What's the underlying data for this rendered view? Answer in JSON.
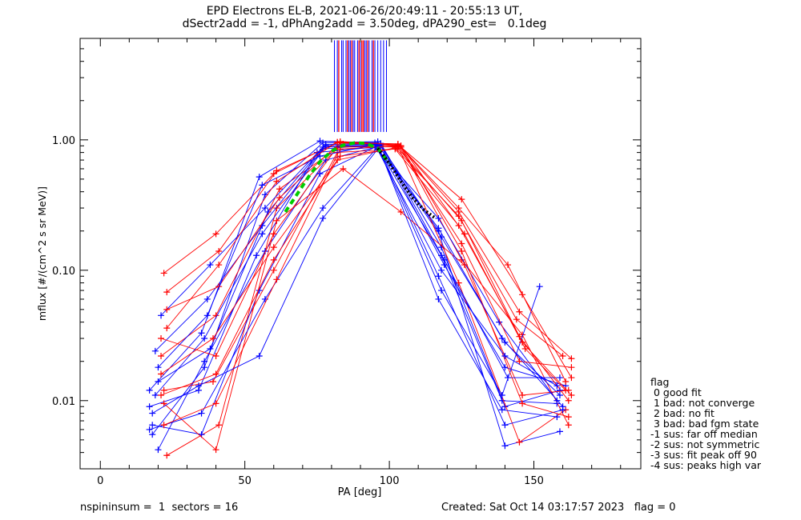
{
  "chart_data": {
    "type": "scatter",
    "title": "EPD Electrons EL-B, 2021-06-26/20:49:11 - 20:55:13 UT,",
    "subtitle": "dSectr2add = -1, dPhAng2add = 3.50deg, dPA290_est=   0.1deg",
    "xlabel": "PA [deg]",
    "ylabel": "mflux [#/(cm^2 s sr MeV)]",
    "xlim": [
      -7,
      187
    ],
    "ylim": [
      0.003,
      6.0
    ],
    "yscale": "log",
    "xticks": [
      0,
      50,
      100,
      150
    ],
    "xtick_labels": [
      "0",
      "50",
      "100",
      "150"
    ],
    "yticks": [
      0.01,
      0.1,
      1.0
    ],
    "ytick_labels": [
      "0.01",
      "0.10",
      "1.00"
    ],
    "grid": false,
    "series": [
      {
        "color": "#0000ff",
        "sweeps": [
          {
            "x": [
              18,
              36,
              57,
              77,
              96,
              117,
              140,
              159
            ],
            "y": [
              0.0055,
              0.018,
              0.38,
              0.95,
              0.97,
              0.2,
              0.0045,
              0.0058
            ]
          },
          {
            "x": [
              17,
              35,
              55,
              76,
              95,
              118,
              139,
              158
            ],
            "y": [
              0.012,
              0.033,
              0.52,
              0.98,
              0.95,
              0.13,
              0.01,
              0.0095
            ]
          },
          {
            "x": [
              20,
              36,
              57,
              78,
              97,
              119,
              140,
              161
            ],
            "y": [
              0.0042,
              0.02,
              0.14,
              0.7,
              0.9,
              0.11,
              0.018,
              0.013
            ]
          },
          {
            "x": [
              19,
              37,
              56,
              77,
              96,
              118,
              140,
              159
            ],
            "y": [
              0.024,
              0.06,
              0.22,
              0.85,
              0.92,
              0.18,
              0.028,
              0.011
            ]
          },
          {
            "x": [
              17,
              34,
              54,
              75,
              95,
              117,
              138,
              158
            ],
            "y": [
              0.009,
              0.012,
              0.13,
              0.8,
              0.88,
              0.25,
              0.04,
              0.01
            ]
          },
          {
            "x": [
              20,
              38,
              58,
              78,
              97,
              118,
              140,
              159
            ],
            "y": [
              0.014,
              0.025,
              0.28,
              0.92,
              0.94,
              0.15,
              0.009,
              0.012
            ]
          },
          {
            "x": [
              18,
              35,
              55,
              76,
              96,
              117,
              140,
              160
            ],
            "y": [
              0.0065,
              0.0055,
              0.07,
              0.55,
              0.9,
              0.09,
              0.0065,
              0.0085
            ]
          },
          {
            "x": [
              21,
              38,
              57,
              77,
              96,
              117,
              139,
              158
            ],
            "y": [
              0.045,
              0.11,
              0.3,
              0.88,
              0.91,
              0.06,
              0.0085,
              0.0075
            ]
          },
          {
            "x": [
              19,
              36,
              56,
              78,
              97,
              119,
              141,
              159
            ],
            "y": [
              0.011,
              0.03,
              0.19,
              0.9,
              0.93,
              0.12,
              0.015,
              0.015
            ]
          },
          {
            "x": [
              17,
              35,
              57,
              77,
              96,
              118,
              139,
              152
            ],
            "y": [
              0.006,
              0.008,
              0.06,
              0.3,
              0.88,
              0.07,
              0.011,
              0.075
            ]
          },
          {
            "x": [
              20,
              37,
              56,
              76,
              95,
              118,
              140,
              158
            ],
            "y": [
              0.018,
              0.045,
              0.45,
              0.75,
              0.92,
              0.1,
              0.022,
              0.013
            ]
          },
          {
            "x": [
              18,
              34,
              55,
              77,
              96,
              117,
              139,
              160
            ],
            "y": [
              0.008,
              0.013,
              0.022,
              0.25,
              0.85,
              0.21,
              0.03,
              0.009
            ]
          }
        ]
      },
      {
        "color": "#ff0000",
        "sweeps": [
          {
            "x": [
              22,
              40,
              60,
              82,
              103,
              124,
              145,
              163
            ],
            "y": [
              0.095,
              0.19,
              0.55,
              0.96,
              0.93,
              0.28,
              0.048,
              0.021
            ]
          },
          {
            "x": [
              23,
              41,
              61,
              83,
              104,
              125,
              146,
              162
            ],
            "y": [
              0.0038,
              0.0065,
              0.3,
              0.9,
              0.88,
              0.12,
              0.032,
              0.0065
            ]
          },
          {
            "x": [
              21,
              40,
              62,
              84,
              104,
              126,
              147,
              161
            ],
            "y": [
              0.022,
              0.045,
              0.42,
              0.93,
              0.9,
              0.19,
              0.025,
              0.012
            ]
          },
          {
            "x": [
              22,
              39,
              60,
              82,
              102,
              124,
              145,
              162
            ],
            "y": [
              0.012,
              0.014,
              0.1,
              0.8,
              0.85,
              0.22,
              0.031,
              0.01
            ]
          },
          {
            "x": [
              23,
              41,
              61,
              83,
              103,
              125,
              146,
              163
            ],
            "y": [
              0.068,
              0.14,
              0.58,
              0.97,
              0.92,
              0.35,
              0.065,
              0.015
            ]
          },
          {
            "x": [
              21,
              40,
              60,
              82,
              103,
              124,
              145,
              161
            ],
            "y": [
              0.03,
              0.022,
              0.19,
              0.88,
              0.89,
              0.08,
              0.0048,
              0.0085
            ]
          },
          {
            "x": [
              22,
              40,
              61,
              84,
              104,
              126,
              146,
              162
            ],
            "y": [
              0.0095,
              0.0042,
              0.24,
              0.6,
              0.28,
              0.11,
              0.011,
              0.012
            ]
          },
          {
            "x": [
              23,
              41,
              62,
              83,
              103,
              125,
              145,
              163
            ],
            "y": [
              0.05,
              0.075,
              0.36,
              0.95,
              0.91,
              0.16,
              0.02,
              0.018
            ]
          },
          {
            "x": [
              21,
              39,
              60,
              82,
              102,
              124,
              144,
              160
            ],
            "y": [
              0.016,
              0.03,
              0.15,
              0.7,
              0.87,
              0.26,
              0.042,
              0.022
            ]
          },
          {
            "x": [
              22,
              40,
              61,
              83,
              104,
              125,
              146,
              162
            ],
            "y": [
              0.0065,
              0.0095,
              0.085,
              0.85,
              0.9,
              0.14,
              0.0095,
              0.0075
            ]
          },
          {
            "x": [
              23,
              41,
              61,
              82,
              103,
              124,
              141,
              161
            ],
            "y": [
              0.036,
              0.11,
              0.48,
              0.96,
              0.93,
              0.3,
              0.11,
              0.014
            ]
          },
          {
            "x": [
              21,
              40,
              60,
              83,
              103,
              125,
              146,
              163
            ],
            "y": [
              0.011,
              0.016,
              0.12,
              0.75,
              0.86,
              0.24,
              0.028,
              0.011
            ]
          }
        ]
      }
    ],
    "fit_curves": [
      {
        "style": "dashed",
        "color": "#00cc00",
        "x": [
          64,
          68,
          72,
          76,
          80,
          84,
          88,
          92,
          96,
          100
        ],
        "y": [
          0.28,
          0.38,
          0.52,
          0.68,
          0.82,
          0.91,
          0.95,
          0.94,
          0.86,
          0.66
        ]
      },
      {
        "style": "dotted",
        "color": "#000000",
        "x": [
          96,
          100,
          104,
          108,
          112,
          116
        ],
        "y": [
          0.86,
          0.66,
          0.48,
          0.36,
          0.29,
          0.25
        ]
      }
    ],
    "rug": {
      "y_range": [
        1.15,
        5.8
      ],
      "blue_x": [
        81,
        82,
        83.5,
        84,
        85,
        86,
        86.5,
        87.5,
        88,
        89,
        90,
        91.5,
        92,
        93,
        94,
        95,
        96,
        97,
        98,
        99
      ],
      "red_x": [
        82.5,
        85.5,
        87,
        89.5,
        90.5,
        91,
        92.5,
        94.5
      ]
    }
  },
  "legend": {
    "heading": "flag",
    "entries": [
      " 0 good fit",
      " 1 bad: not converge",
      " 2 bad: no fit",
      " 3 bad: bad fgm state",
      "-1 sus: far off median",
      "-2 sus: not symmetric",
      "-3 sus: fit peak off 90",
      "-4 sus: peaks high var"
    ]
  },
  "footer": {
    "left": "nspininsum =  1  sectors = 16",
    "right": "Created: Sat Oct 14 03:17:57 2023   flag = 0"
  }
}
